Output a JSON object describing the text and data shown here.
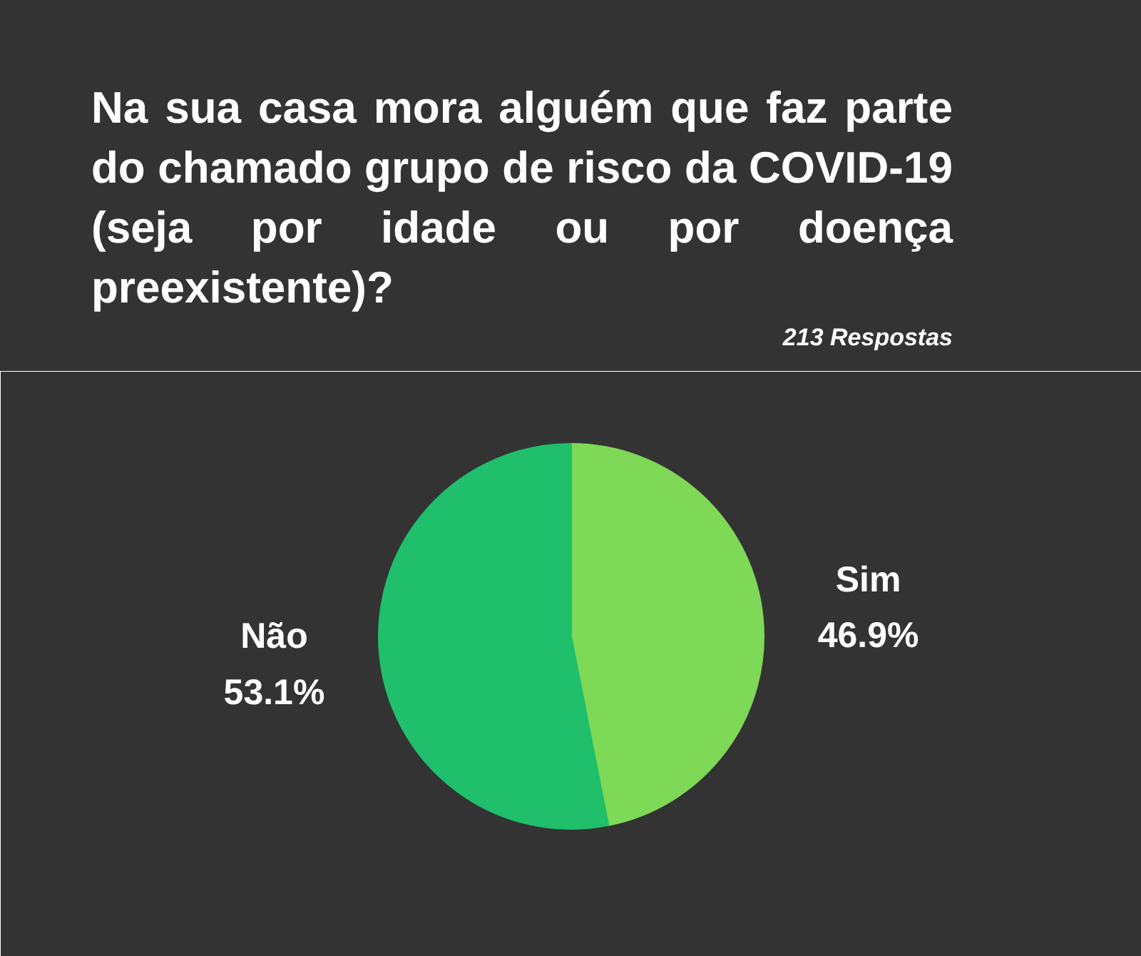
{
  "chart_data": {
    "type": "pie",
    "title": "Na sua casa mora alguém que faz parte do chamado grupo de risco da COVID-19 (seja por idade ou por doença preexistente)?",
    "subtitle": "213 Respostas",
    "categories": [
      "Sim",
      "Não"
    ],
    "values": [
      46.9,
      53.1
    ],
    "colors": [
      "#7ed957",
      "#1fbf6c"
    ],
    "value_labels": [
      "46.9%",
      "53.1%"
    ]
  }
}
